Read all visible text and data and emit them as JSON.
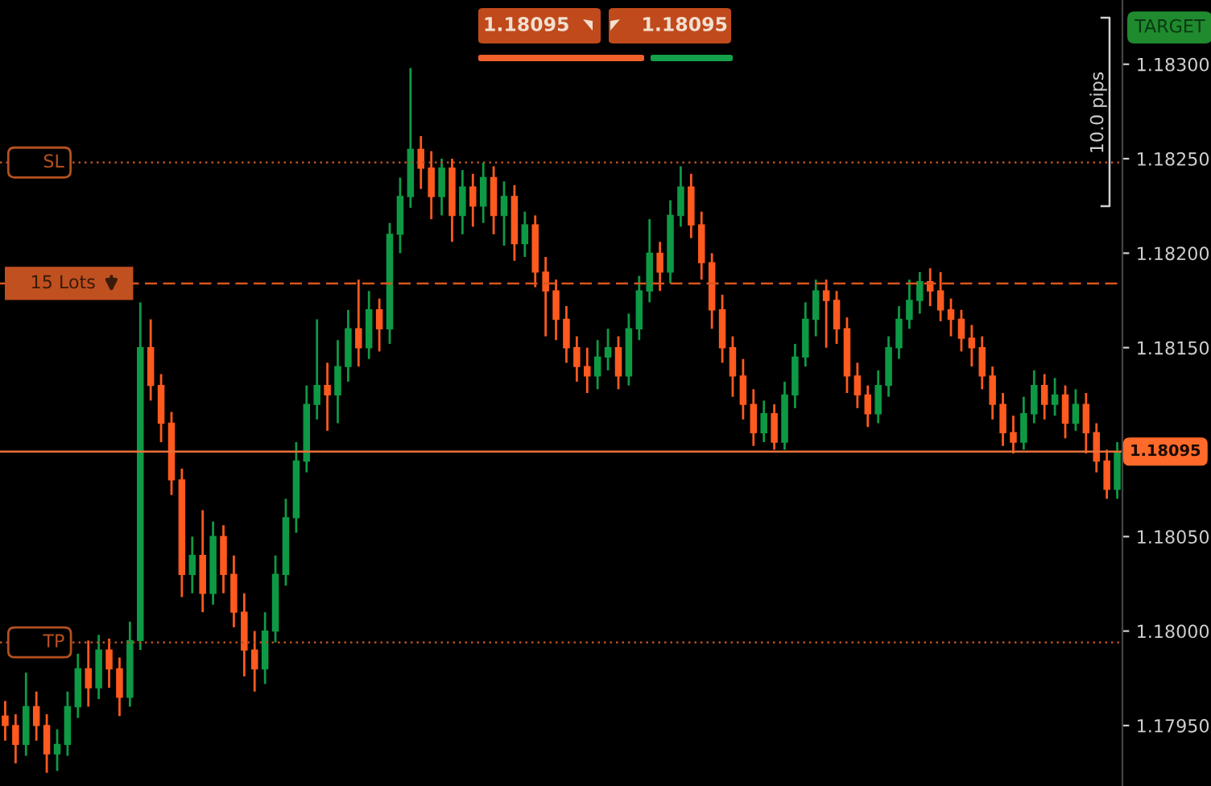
{
  "chart_data": {
    "type": "candlestick",
    "categories": [
      null,
      null,
      null,
      null,
      null,
      null,
      null,
      null,
      null,
      null,
      null,
      null,
      null,
      null,
      null,
      null,
      null,
      null,
      null,
      null,
      null,
      null,
      null,
      null,
      null,
      null,
      null,
      null,
      null,
      null,
      null,
      null,
      null,
      null,
      null,
      null,
      null,
      null,
      null,
      null,
      null,
      null,
      null,
      null,
      null,
      null,
      null,
      null,
      null,
      null,
      null,
      null,
      null,
      null,
      null,
      null,
      null,
      null,
      null,
      null,
      null,
      null,
      null,
      null,
      null,
      null,
      null,
      null,
      null,
      null,
      null,
      null,
      null,
      null,
      null,
      null,
      null,
      null,
      null,
      null,
      null,
      null,
      null,
      null,
      null,
      null,
      null,
      null,
      null,
      null,
      null,
      null,
      null,
      null,
      null,
      null,
      null,
      null,
      null,
      null,
      null,
      null,
      null,
      null,
      null,
      null,
      null,
      null
    ],
    "ohlc": [
      [
        1.17955,
        1.17963,
        1.17942,
        1.1795
      ],
      [
        1.1795,
        1.17956,
        1.1793,
        1.1794
      ],
      [
        1.1794,
        1.17978,
        1.17934,
        1.1796
      ],
      [
        1.1796,
        1.17968,
        1.17942,
        1.1795
      ],
      [
        1.1795,
        1.17956,
        1.17925,
        1.17935
      ],
      [
        1.17935,
        1.17948,
        1.17926,
        1.1794
      ],
      [
        1.1794,
        1.17968,
        1.17934,
        1.1796
      ],
      [
        1.1796,
        1.17988,
        1.17954,
        1.1798
      ],
      [
        1.1798,
        1.17995,
        1.1796,
        1.1797
      ],
      [
        1.1797,
        1.17998,
        1.17964,
        1.1799
      ],
      [
        1.1799,
        1.17996,
        1.1797,
        1.1798
      ],
      [
        1.1798,
        1.17986,
        1.17955,
        1.17965
      ],
      [
        1.17965,
        1.18005,
        1.1796,
        1.17995
      ],
      [
        1.17995,
        1.18174,
        1.1799,
        1.1815
      ],
      [
        1.1815,
        1.18165,
        1.18122,
        1.1813
      ],
      [
        1.1813,
        1.18136,
        1.181,
        1.1811
      ],
      [
        1.1811,
        1.18116,
        1.18072,
        1.1808
      ],
      [
        1.1808,
        1.18086,
        1.18018,
        1.1803
      ],
      [
        1.1803,
        1.1805,
        1.1802,
        1.1804
      ],
      [
        1.1804,
        1.18064,
        1.1801,
        1.1802
      ],
      [
        1.1802,
        1.18058,
        1.18014,
        1.1805
      ],
      [
        1.1805,
        1.18056,
        1.1802,
        1.1803
      ],
      [
        1.1803,
        1.1804,
        1.18002,
        1.1801
      ],
      [
        1.1801,
        1.1802,
        1.17976,
        1.1799
      ],
      [
        1.1799,
        1.18,
        1.17968,
        1.1798
      ],
      [
        1.1798,
        1.1801,
        1.17972,
        1.18
      ],
      [
        1.18,
        1.1804,
        1.17994,
        1.1803
      ],
      [
        1.1803,
        1.1807,
        1.18024,
        1.1806
      ],
      [
        1.1806,
        1.181,
        1.18052,
        1.1809
      ],
      [
        1.1809,
        1.1813,
        1.18084,
        1.1812
      ],
      [
        1.1812,
        1.18165,
        1.18112,
        1.1813
      ],
      [
        1.1813,
        1.18142,
        1.18106,
        1.18125
      ],
      [
        1.18125,
        1.18154,
        1.1811,
        1.1814
      ],
      [
        1.1814,
        1.1817,
        1.18132,
        1.1816
      ],
      [
        1.1816,
        1.18186,
        1.1814,
        1.1815
      ],
      [
        1.1815,
        1.1818,
        1.18144,
        1.1817
      ],
      [
        1.1817,
        1.18176,
        1.18148,
        1.1816
      ],
      [
        1.1816,
        1.18216,
        1.18152,
        1.1821
      ],
      [
        1.1821,
        1.1824,
        1.182,
        1.1823
      ],
      [
        1.1823,
        1.18298,
        1.18224,
        1.18255
      ],
      [
        1.18255,
        1.18262,
        1.18234,
        1.18245
      ],
      [
        1.18245,
        1.18254,
        1.18218,
        1.1823
      ],
      [
        1.1823,
        1.1825,
        1.1822,
        1.18245
      ],
      [
        1.18245,
        1.1825,
        1.18206,
        1.1822
      ],
      [
        1.1822,
        1.18244,
        1.1821,
        1.18235
      ],
      [
        1.18235,
        1.18242,
        1.18214,
        1.18225
      ],
      [
        1.18225,
        1.18248,
        1.18216,
        1.1824
      ],
      [
        1.1824,
        1.18246,
        1.1821,
        1.1822
      ],
      [
        1.1822,
        1.18238,
        1.18204,
        1.1823
      ],
      [
        1.1823,
        1.18236,
        1.18196,
        1.18205
      ],
      [
        1.18205,
        1.18222,
        1.18198,
        1.18215
      ],
      [
        1.18215,
        1.1822,
        1.18182,
        1.1819
      ],
      [
        1.1819,
        1.18198,
        1.18156,
        1.1818
      ],
      [
        1.1818,
        1.18186,
        1.18154,
        1.18165
      ],
      [
        1.18165,
        1.18172,
        1.18142,
        1.1815
      ],
      [
        1.1815,
        1.18156,
        1.18132,
        1.1814
      ],
      [
        1.1814,
        1.1815,
        1.18126,
        1.18135
      ],
      [
        1.18135,
        1.18154,
        1.18128,
        1.18145
      ],
      [
        1.18145,
        1.1816,
        1.18138,
        1.1815
      ],
      [
        1.1815,
        1.18156,
        1.18128,
        1.18135
      ],
      [
        1.18135,
        1.18168,
        1.1813,
        1.1816
      ],
      [
        1.1816,
        1.18188,
        1.18154,
        1.1818
      ],
      [
        1.1818,
        1.18218,
        1.18174,
        1.182
      ],
      [
        1.182,
        1.18206,
        1.1818,
        1.1819
      ],
      [
        1.1819,
        1.18228,
        1.18184,
        1.1822
      ],
      [
        1.1822,
        1.18246,
        1.18214,
        1.18235
      ],
      [
        1.18235,
        1.18242,
        1.18208,
        1.18215
      ],
      [
        1.18215,
        1.18222,
        1.18186,
        1.18195
      ],
      [
        1.18195,
        1.182,
        1.1816,
        1.1817
      ],
      [
        1.1817,
        1.18178,
        1.18142,
        1.1815
      ],
      [
        1.1815,
        1.18156,
        1.18124,
        1.18135
      ],
      [
        1.18135,
        1.18144,
        1.18112,
        1.1812
      ],
      [
        1.1812,
        1.18128,
        1.18098,
        1.18105
      ],
      [
        1.18105,
        1.18122,
        1.181,
        1.18115
      ],
      [
        1.18115,
        1.1812,
        1.18096,
        1.181
      ],
      [
        1.181,
        1.18132,
        1.18096,
        1.18125
      ],
      [
        1.18125,
        1.18152,
        1.18118,
        1.18145
      ],
      [
        1.18145,
        1.18174,
        1.1814,
        1.18165
      ],
      [
        1.18165,
        1.18186,
        1.18156,
        1.1818
      ],
      [
        1.1818,
        1.18186,
        1.1815,
        1.18175
      ],
      [
        1.18175,
        1.1818,
        1.18152,
        1.1816
      ],
      [
        1.1816,
        1.18166,
        1.18126,
        1.18135
      ],
      [
        1.18135,
        1.18142,
        1.18118,
        1.18125
      ],
      [
        1.18125,
        1.1813,
        1.18108,
        1.18115
      ],
      [
        1.18115,
        1.18138,
        1.1811,
        1.1813
      ],
      [
        1.1813,
        1.18156,
        1.18124,
        1.1815
      ],
      [
        1.1815,
        1.18172,
        1.18144,
        1.18165
      ],
      [
        1.18165,
        1.18186,
        1.1816,
        1.18175
      ],
      [
        1.18175,
        1.1819,
        1.18168,
        1.18185
      ],
      [
        1.18185,
        1.18192,
        1.18172,
        1.1818
      ],
      [
        1.1818,
        1.1819,
        1.18164,
        1.1817
      ],
      [
        1.1817,
        1.18176,
        1.18156,
        1.18165
      ],
      [
        1.18165,
        1.1817,
        1.18148,
        1.18155
      ],
      [
        1.18155,
        1.18162,
        1.1814,
        1.1815
      ],
      [
        1.1815,
        1.18156,
        1.18128,
        1.18135
      ],
      [
        1.18135,
        1.1814,
        1.18112,
        1.1812
      ],
      [
        1.1812,
        1.18126,
        1.18098,
        1.18105
      ],
      [
        1.18105,
        1.18114,
        1.18094,
        1.181
      ],
      [
        1.181,
        1.18124,
        1.18096,
        1.18115
      ],
      [
        1.18115,
        1.18138,
        1.1811,
        1.1813
      ],
      [
        1.1813,
        1.18136,
        1.18112,
        1.1812
      ],
      [
        1.1812,
        1.18134,
        1.18114,
        1.18125
      ],
      [
        1.18125,
        1.1813,
        1.18102,
        1.1811
      ],
      [
        1.1811,
        1.18128,
        1.18106,
        1.1812
      ],
      [
        1.1812,
        1.18126,
        1.18094,
        1.18105
      ],
      [
        1.18105,
        1.1811,
        1.18084,
        1.1809
      ],
      [
        1.1809,
        1.18096,
        1.1807,
        1.18075
      ],
      [
        1.18075,
        1.181,
        1.1807,
        1.18095
      ]
    ],
    "colors": [
      "#ff5a1f",
      "#ff5a1f",
      "#0e9a45",
      "#ff5a1f",
      "#ff5a1f",
      "#0e9a45",
      "#0e9a45",
      "#0e9a45",
      "#ff5a1f",
      "#0e9a45",
      "#ff5a1f",
      "#ff5a1f",
      "#0e9a45",
      "#0e9a45",
      "#ff5a1f",
      "#ff5a1f",
      "#ff5a1f",
      "#ff5a1f",
      "#0e9a45",
      "#ff5a1f",
      "#0e9a45",
      "#ff5a1f",
      "#ff5a1f",
      "#ff5a1f",
      "#ff5a1f",
      "#0e9a45",
      "#0e9a45",
      "#0e9a45",
      "#0e9a45",
      "#0e9a45",
      "#0e9a45",
      "#ff5a1f",
      "#0e9a45",
      "#0e9a45",
      "#ff5a1f",
      "#0e9a45",
      "#ff5a1f",
      "#0e9a45",
      "#0e9a45",
      "#0e9a45",
      "#ff5a1f",
      "#ff5a1f",
      "#0e9a45",
      "#ff5a1f",
      "#0e9a45",
      "#ff5a1f",
      "#0e9a45",
      "#ff5a1f",
      "#0e9a45",
      "#ff5a1f",
      "#0e9a45",
      "#ff5a1f",
      "#ff5a1f",
      "#ff5a1f",
      "#ff5a1f",
      "#ff5a1f",
      "#ff5a1f",
      "#0e9a45",
      "#0e9a45",
      "#ff5a1f",
      "#0e9a45",
      "#0e9a45",
      "#0e9a45",
      "#ff5a1f",
      "#0e9a45",
      "#0e9a45",
      "#ff5a1f",
      "#ff5a1f",
      "#ff5a1f",
      "#ff5a1f",
      "#ff5a1f",
      "#ff5a1f",
      "#ff5a1f",
      "#0e9a45",
      "#ff5a1f",
      "#0e9a45",
      "#0e9a45",
      "#0e9a45",
      "#0e9a45",
      "#ff5a1f",
      "#ff5a1f",
      "#ff5a1f",
      "#ff5a1f",
      "#ff5a1f",
      "#0e9a45",
      "#0e9a45",
      "#0e9a45",
      "#0e9a45",
      "#0e9a45",
      "#ff5a1f",
      "#ff5a1f",
      "#ff5a1f",
      "#ff5a1f",
      "#ff5a1f",
      "#ff5a1f",
      "#ff5a1f",
      "#ff5a1f",
      "#ff5a1f",
      "#0e9a45",
      "#0e9a45",
      "#ff5a1f",
      "#0e9a45",
      "#ff5a1f",
      "#0e9a45",
      "#ff5a1f",
      "#ff5a1f",
      "#ff5a1f",
      "#0e9a45"
    ],
    "ylim": [
      1.17918,
      1.18334
    ],
    "yticks": [
      {
        "value": 1.1795,
        "label": "1.17950"
      },
      {
        "value": 1.18,
        "label": "1.18000"
      },
      {
        "value": 1.1805,
        "label": "1.18050"
      },
      {
        "value": 1.1815,
        "label": "1.18150"
      },
      {
        "value": 1.182,
        "label": "1.18200"
      },
      {
        "value": 1.1825,
        "label": "1.18250"
      },
      {
        "value": 1.183,
        "label": "1.18300"
      }
    ],
    "ref_lines": [
      {
        "axis": "y",
        "value": 1.18248,
        "label": "SL",
        "color": "#b5501f",
        "line_style": "dotted"
      },
      {
        "axis": "y",
        "value": 1.18184,
        "label": "15 Lots",
        "color": "#d9541e",
        "line_style": "dashed"
      },
      {
        "axis": "y",
        "value": 1.18095,
        "label": "1.18095",
        "color": "#e8703a",
        "line_style": "solid"
      },
      {
        "axis": "y",
        "value": 1.17994,
        "label": "TP",
        "color": "#b5501f",
        "line_style": "dotted"
      }
    ],
    "annotations": [
      "TARGET",
      "10.0 pips",
      "1.18095",
      "1.18095"
    ],
    "grid": false,
    "legend": false
  }
}
